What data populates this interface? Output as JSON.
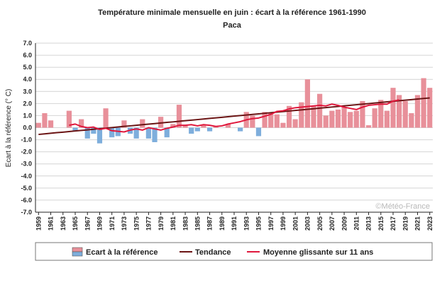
{
  "chart_data": {
    "type": "bar",
    "title": "Température minimale mensuelle en juin : écart à la référence 1961-1990",
    "subtitle": "Paca",
    "ylabel": "Ecart à la référence (° C)",
    "xlabel": "",
    "ylim": [
      -7,
      7
    ],
    "y_ticks": [
      "7.0",
      "6.0",
      "5.0",
      "4.0",
      "3.0",
      "2.0",
      "1.0",
      "0.0",
      "-1.0",
      "-2.0",
      "-3.0",
      "-4.0",
      "-5.0",
      "-6.0",
      "-7.0"
    ],
    "grid": true,
    "legend_position": "bottom",
    "credit": "©Météo-France",
    "x": [
      1959,
      1960,
      1961,
      1962,
      1963,
      1964,
      1965,
      1966,
      1967,
      1968,
      1969,
      1970,
      1971,
      1972,
      1973,
      1974,
      1975,
      1976,
      1977,
      1978,
      1979,
      1980,
      1981,
      1982,
      1983,
      1984,
      1985,
      1986,
      1987,
      1988,
      1989,
      1990,
      1991,
      1992,
      1993,
      1994,
      1995,
      1996,
      1997,
      1998,
      1999,
      2000,
      2001,
      2002,
      2003,
      2004,
      2005,
      2006,
      2007,
      2008,
      2009,
      2010,
      2011,
      2012,
      2013,
      2014,
      2015,
      2016,
      2017,
      2018,
      2019,
      2020,
      2021,
      2022,
      2023
    ],
    "x_tick_labels": [
      "1959",
      "1961",
      "1963",
      "1965",
      "1967",
      "1969",
      "1971",
      "1973",
      "1975",
      "1977",
      "1979",
      "1981",
      "1983",
      "1985",
      "1987",
      "1989",
      "1991",
      "1993",
      "1995",
      "1997",
      "1999",
      "2001",
      "2003",
      "2005",
      "2007",
      "2009",
      "2011",
      "2013",
      "2015",
      "2017",
      "2019",
      "2021",
      "2023"
    ],
    "series": [
      {
        "name": "Ecart à la référence",
        "kind": "bar",
        "positive_color": "#e8909a",
        "negative_color": "#7eaedc",
        "values": [
          0.4,
          1.2,
          0.6,
          0.0,
          0.0,
          1.4,
          -0.3,
          0.7,
          -0.9,
          -0.5,
          -1.3,
          1.6,
          -0.8,
          -0.7,
          0.6,
          -0.5,
          -0.9,
          0.7,
          -0.9,
          -1.2,
          0.9,
          -0.8,
          0.3,
          1.9,
          0.2,
          -0.5,
          -0.3,
          0.2,
          -0.3,
          0.1,
          0.0,
          0.3,
          0.0,
          -0.3,
          1.3,
          1.0,
          -0.7,
          1.3,
          1.2,
          1.1,
          0.4,
          1.8,
          0.7,
          2.1,
          4.0,
          1.8,
          2.8,
          1.0,
          1.4,
          1.5,
          1.7,
          1.3,
          1.4,
          2.2,
          0.2,
          1.6,
          2.3,
          1.4,
          3.3,
          2.7,
          2.2,
          1.2,
          2.7,
          4.1,
          3.3
        ]
      },
      {
        "name": "Tendance",
        "kind": "line",
        "color": "#6b1414",
        "values": [
          -0.56,
          -0.51,
          -0.46,
          -0.41,
          -0.37,
          -0.32,
          -0.27,
          -0.23,
          -0.18,
          -0.13,
          -0.08,
          -0.04,
          0.01,
          0.06,
          0.11,
          0.15,
          0.2,
          0.25,
          0.29,
          0.34,
          0.39,
          0.44,
          0.48,
          0.53,
          0.58,
          0.62,
          0.67,
          0.72,
          0.77,
          0.81,
          0.86,
          0.91,
          0.96,
          1.0,
          1.05,
          1.1,
          1.14,
          1.19,
          1.24,
          1.29,
          1.33,
          1.38,
          1.43,
          1.47,
          1.52,
          1.57,
          1.62,
          1.66,
          1.71,
          1.76,
          1.81,
          1.85,
          1.9,
          1.95,
          1.99,
          2.04,
          2.09,
          2.14,
          2.18,
          2.23,
          2.28,
          2.32,
          2.37,
          2.42,
          2.46
        ]
      },
      {
        "name": "Moyenne glissante sur 11 ans",
        "kind": "line",
        "color": "#e0183c",
        "values": [
          null,
          null,
          null,
          null,
          null,
          0.2,
          0.3,
          0.1,
          0.0,
          0.05,
          -0.15,
          -0.05,
          -0.25,
          -0.3,
          -0.35,
          -0.2,
          -0.1,
          -0.2,
          0.0,
          -0.1,
          -0.2,
          -0.05,
          0.05,
          0.2,
          0.2,
          0.25,
          0.15,
          0.25,
          0.2,
          0.1,
          0.15,
          0.3,
          0.4,
          0.5,
          0.65,
          0.75,
          0.8,
          0.95,
          1.1,
          1.35,
          1.4,
          1.55,
          1.65,
          1.7,
          1.75,
          1.8,
          1.85,
          1.8,
          1.95,
          1.85,
          1.7,
          1.6,
          1.5,
          1.7,
          1.85,
          1.9,
          1.95,
          1.95,
          2.2,
          2.3,
          null,
          null,
          null,
          null,
          null
        ]
      }
    ]
  }
}
